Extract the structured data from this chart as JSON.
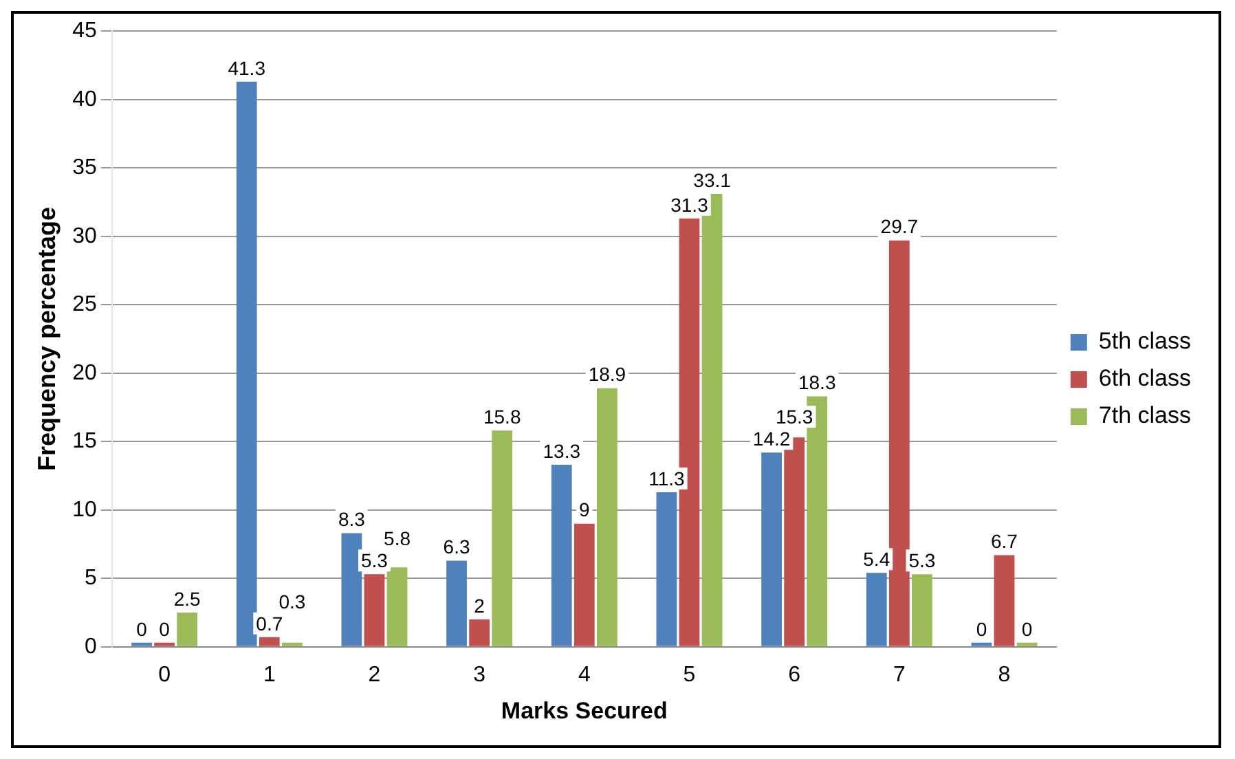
{
  "chart_data": {
    "type": "bar",
    "xlabel": "Marks Secured",
    "ylabel": "Frequency percentage",
    "categories": [
      "0",
      "1",
      "2",
      "3",
      "4",
      "5",
      "6",
      "7",
      "8"
    ],
    "series": [
      {
        "name": "5th class",
        "color": "#4f81bd",
        "values": [
          0,
          41.3,
          8.3,
          6.3,
          13.3,
          11.3,
          14.2,
          5.4,
          0
        ]
      },
      {
        "name": "6th class",
        "color": "#c0504d",
        "values": [
          0,
          0.7,
          5.3,
          2,
          9,
          31.3,
          15.3,
          29.7,
          6.7
        ]
      },
      {
        "name": "7th class",
        "color": "#9bbb59",
        "values": [
          2.5,
          0.3,
          5.8,
          15.8,
          18.9,
          33.1,
          18.3,
          5.3,
          0
        ]
      }
    ],
    "ylim": [
      0,
      45
    ],
    "yticks": [
      0,
      5,
      10,
      15,
      20,
      25,
      30,
      35,
      40,
      45
    ],
    "grid": "y",
    "legend": "right",
    "data_labels": true
  }
}
